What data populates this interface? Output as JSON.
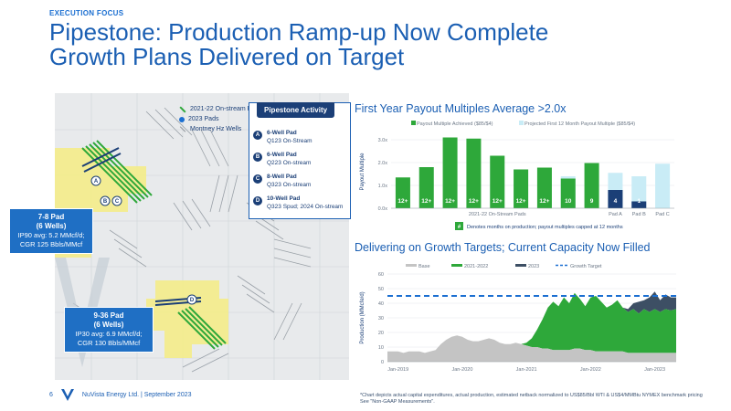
{
  "section_label": "EXECUTION FOCUS",
  "title_line1": "Pipestone: Production Ramp-up Now Complete",
  "title_line2": "Growth Plans Delivered on Target",
  "map_legend": {
    "item1": "2021-22 On-stream Pads",
    "item2": "2023 Pads",
    "item3": "Montney Hz Wells"
  },
  "callout_top": {
    "name": "7-8 Pad",
    "wells": "(6 Wells)",
    "line1": "IP90 avg: 5.2 MMcf/d;",
    "line2": "CGR 125 Bbls/MMcf"
  },
  "callout_bottom": {
    "name": "9-36 Pad",
    "wells": "(6 Wells)",
    "line1": "IP30 avg: 6.9 MMcf/d;",
    "line2": "CGR 130 Bbls/MMcf"
  },
  "map_labels": {
    "a": "A",
    "b": "B",
    "c": "C",
    "d": "D"
  },
  "activity": {
    "header": "Pipestone Activity",
    "items": [
      {
        "badge": "A",
        "title": "6-Well Pad",
        "sub": "Q123 On-Stream"
      },
      {
        "badge": "B",
        "title": "6-Well Pad",
        "sub": "Q223 On-stream"
      },
      {
        "badge": "C",
        "title": "8-Well Pad",
        "sub": "Q323 On-stream"
      },
      {
        "badge": "D",
        "title": "10-Well Pad",
        "sub": "Q323 Spud; 2024 On-stream"
      }
    ]
  },
  "chart1_title": "First Year Payout Multiples Average >2.0x",
  "chart2_title": "Delivering on Growth Targets; Current Capacity Now Filled",
  "footer": {
    "page": "6",
    "company": "NuVista Energy Ltd. | September 2023"
  },
  "footnote_line1": "*Chart depicts actual capital expenditures, actual production, estimated netback normalized to US$85/Bbl WTI & US$4/MMBtu NYMEX benchmark pricing",
  "footnote_line2": "See \"Non-GAAP Measurements\".",
  "colors": {
    "green": "#2ea83a",
    "light_blue": "#c9ecf6",
    "navy": "#1b3f77",
    "gray": "#c4c4c4",
    "dark_slate": "#3d4f64",
    "dashed": "#1b6fd1"
  },
  "chart_data": [
    {
      "type": "bar",
      "title": "First Year Payout Multiples Average >2.0x",
      "ylabel": "Payout Multiple",
      "ylim": [
        0,
        3.2
      ],
      "yticks": [
        "0.0x",
        "1.0x",
        "2.0x",
        "3.0x"
      ],
      "ytick_values": [
        0,
        1,
        2,
        3
      ],
      "legend": [
        "Payout Multiple Achieved ($85/$4)",
        "Projected First 12 Month Payout Multiple ($85/$4)"
      ],
      "group_label_left": "2021-22 On-Stream Pads",
      "categories": [
        "",
        "",
        "",
        "",
        "",
        "",
        "",
        "",
        "",
        "Pad A",
        "Pad B",
        "Pad C"
      ],
      "achieved": [
        1.35,
        1.8,
        3.1,
        3.05,
        2.3,
        1.7,
        1.78,
        1.3,
        1.98,
        0.8,
        0.3,
        0
      ],
      "projected": [
        0,
        0,
        0,
        0,
        0,
        0,
        0,
        1.4,
        0,
        1.55,
        1.4,
        1.95
      ],
      "bar_labels": [
        "12+",
        "12+",
        "12+",
        "12+",
        "12+",
        "12+",
        "12+",
        "10",
        "9",
        "4",
        "1",
        ""
      ],
      "note_badge": "#",
      "note": "Denotes months on production; payout multiples capped at 12 months"
    },
    {
      "type": "area",
      "title": "Delivering on Growth Targets; Current Capacity Now Filled",
      "ylabel": "Production (MMcfe/d)",
      "ylim": [
        0,
        60
      ],
      "yticks": [
        0,
        10,
        20,
        30,
        40,
        50,
        60
      ],
      "xticks": [
        "Jan-2019",
        "Jan-2020",
        "Jan-2021",
        "Jan-2022",
        "Jan-2023"
      ],
      "legend": [
        "Base",
        "2021-2022",
        "2023",
        "Growth Target"
      ],
      "growth_target": 45,
      "x": [
        0,
        1,
        2,
        3,
        4,
        5,
        6,
        7,
        8,
        9,
        10,
        11,
        12,
        13,
        14,
        15,
        16,
        17,
        18,
        19,
        20,
        21,
        22,
        23,
        24,
        25,
        26,
        27,
        28,
        29,
        30,
        31,
        32,
        33,
        34,
        35,
        36,
        37,
        38,
        39,
        40,
        41,
        42,
        43,
        44,
        45,
        46,
        47,
        48,
        49,
        50,
        51,
        52,
        53,
        54
      ],
      "base": [
        7,
        7,
        7,
        6,
        7,
        7,
        7,
        6,
        7,
        8,
        12,
        15,
        17,
        18,
        17,
        15,
        14,
        14,
        15,
        16,
        15,
        13,
        12,
        12,
        13,
        12,
        11,
        10,
        10,
        9,
        9,
        8,
        8,
        8,
        8,
        9,
        9,
        8,
        8,
        7,
        7,
        7,
        7,
        7,
        7,
        6,
        6,
        6,
        6,
        6,
        6,
        6,
        6,
        6,
        6
      ],
      "y2021_2022": [
        0,
        0,
        0,
        0,
        0,
        0,
        0,
        0,
        0,
        0,
        0,
        0,
        0,
        0,
        0,
        0,
        0,
        0,
        0,
        0,
        0,
        0,
        0,
        0,
        0,
        0,
        2,
        6,
        12,
        20,
        28,
        33,
        30,
        36,
        32,
        38,
        34,
        30,
        36,
        38,
        34,
        30,
        32,
        35,
        30,
        28,
        30,
        27,
        30,
        28,
        30,
        28,
        30,
        29,
        30
      ],
      "y2023": [
        0,
        0,
        0,
        0,
        0,
        0,
        0,
        0,
        0,
        0,
        0,
        0,
        0,
        0,
        0,
        0,
        0,
        0,
        0,
        0,
        0,
        0,
        0,
        0,
        0,
        0,
        0,
        0,
        0,
        0,
        0,
        0,
        0,
        0,
        0,
        0,
        0,
        0,
        0,
        0,
        0,
        0,
        0,
        0,
        0,
        2,
        4,
        8,
        6,
        10,
        12,
        8,
        10,
        9,
        8
      ]
    }
  ]
}
